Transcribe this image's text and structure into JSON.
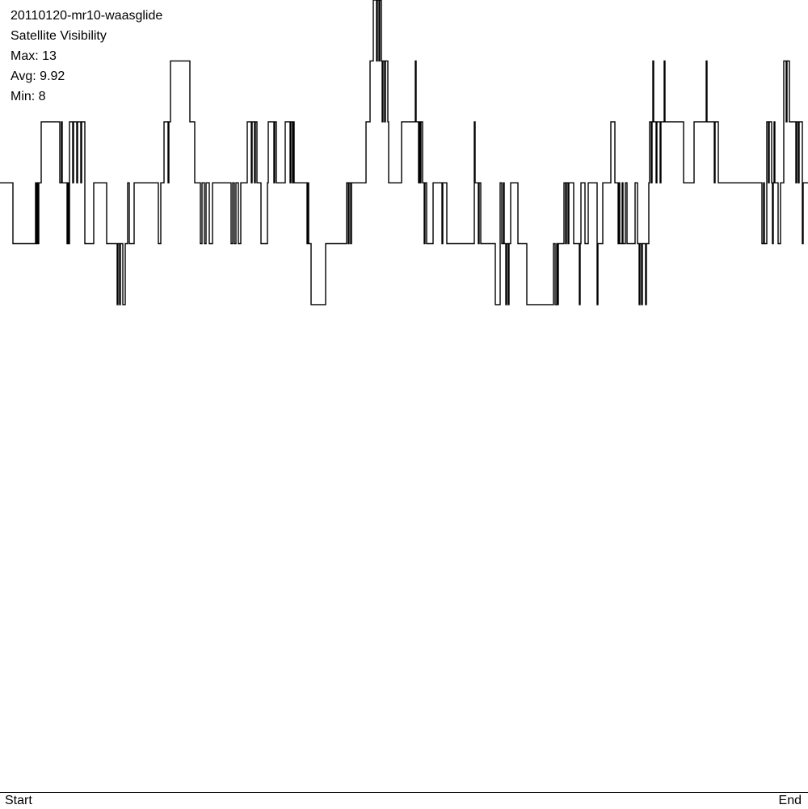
{
  "header": {
    "dataset": "20110120-mr10-waasglide",
    "title": "Satellite Visibility",
    "max_label": "Max: 13",
    "avg_label": "Avg: 9.92",
    "min_label": "Min: 8"
  },
  "chart_data": {
    "type": "line",
    "title": "Satellite Visibility",
    "step": true,
    "xlabel": "",
    "ylabel": "",
    "x_tick_labels": [
      "Start",
      "End"
    ],
    "x_unit": "percent of duration",
    "xlim": [
      0,
      100
    ],
    "ylim": [
      0,
      13
    ],
    "grid": false,
    "line_color": "#000000",
    "stats": {
      "max": 13,
      "avg": 9.92,
      "min": 8
    },
    "points": [
      [
        0,
        10
      ],
      [
        1.6,
        9
      ],
      [
        4.4,
        10
      ],
      [
        4.5,
        9
      ],
      [
        4.6,
        10
      ],
      [
        4.7,
        9
      ],
      [
        4.8,
        10
      ],
      [
        5.1,
        11
      ],
      [
        7.4,
        10
      ],
      [
        7.6,
        11
      ],
      [
        7.7,
        10
      ],
      [
        8.3,
        9
      ],
      [
        8.4,
        10
      ],
      [
        8.5,
        9
      ],
      [
        8.6,
        11
      ],
      [
        9.0,
        10
      ],
      [
        9.1,
        11
      ],
      [
        9.5,
        10
      ],
      [
        9.6,
        11
      ],
      [
        10.0,
        10
      ],
      [
        10.1,
        11
      ],
      [
        10.5,
        9
      ],
      [
        11.6,
        10
      ],
      [
        13.2,
        9
      ],
      [
        14.5,
        8
      ],
      [
        14.6,
        9
      ],
      [
        14.8,
        8
      ],
      [
        14.9,
        9
      ],
      [
        15.2,
        8
      ],
      [
        15.5,
        9
      ],
      [
        15.8,
        10
      ],
      [
        16.0,
        9
      ],
      [
        16.6,
        10
      ],
      [
        19.6,
        9
      ],
      [
        19.9,
        10
      ],
      [
        20.3,
        11
      ],
      [
        20.8,
        10
      ],
      [
        20.9,
        11
      ],
      [
        21.1,
        12
      ],
      [
        23.5,
        11
      ],
      [
        24.1,
        10
      ],
      [
        24.8,
        9
      ],
      [
        25.0,
        10
      ],
      [
        25.3,
        9
      ],
      [
        25.5,
        10
      ],
      [
        25.9,
        9
      ],
      [
        26.3,
        10
      ],
      [
        28.6,
        9
      ],
      [
        28.8,
        10
      ],
      [
        29.0,
        9
      ],
      [
        29.2,
        10
      ],
      [
        29.5,
        9
      ],
      [
        29.8,
        10
      ],
      [
        30.6,
        11
      ],
      [
        31.1,
        10
      ],
      [
        31.2,
        11
      ],
      [
        31.5,
        10
      ],
      [
        31.6,
        11
      ],
      [
        31.8,
        10
      ],
      [
        32.3,
        9
      ],
      [
        33.1,
        10
      ],
      [
        33.2,
        11
      ],
      [
        33.9,
        10
      ],
      [
        34.0,
        11
      ],
      [
        34.2,
        10
      ],
      [
        35.3,
        11
      ],
      [
        35.9,
        10
      ],
      [
        36.0,
        11
      ],
      [
        36.2,
        10
      ],
      [
        36.3,
        11
      ],
      [
        36.4,
        10
      ],
      [
        38.0,
        9
      ],
      [
        38.1,
        10
      ],
      [
        38.2,
        9
      ],
      [
        38.5,
        8
      ],
      [
        40.3,
        9
      ],
      [
        42.9,
        10
      ],
      [
        43.1,
        9
      ],
      [
        43.2,
        10
      ],
      [
        43.4,
        9
      ],
      [
        43.5,
        10
      ],
      [
        45.3,
        11
      ],
      [
        45.8,
        12
      ],
      [
        46.2,
        13
      ],
      [
        46.6,
        12
      ],
      [
        46.7,
        13
      ],
      [
        46.9,
        12
      ],
      [
        47.0,
        13
      ],
      [
        47.2,
        12
      ],
      [
        47.3,
        11
      ],
      [
        47.4,
        12
      ],
      [
        47.6,
        11
      ],
      [
        47.7,
        12
      ],
      [
        48.0,
        11
      ],
      [
        48.1,
        10
      ],
      [
        49.7,
        11
      ],
      [
        51.4,
        12
      ],
      [
        51.5,
        11
      ],
      [
        51.8,
        10
      ],
      [
        51.9,
        11
      ],
      [
        52.0,
        10
      ],
      [
        52.1,
        11
      ],
      [
        52.3,
        10
      ],
      [
        52.5,
        9
      ],
      [
        52.6,
        10
      ],
      [
        52.8,
        9
      ],
      [
        53.6,
        10
      ],
      [
        54.7,
        9
      ],
      [
        54.8,
        10
      ],
      [
        55.3,
        9
      ],
      [
        58.7,
        11
      ],
      [
        58.8,
        10
      ],
      [
        59.2,
        9
      ],
      [
        59.3,
        10
      ],
      [
        59.5,
        9
      ],
      [
        61.3,
        8
      ],
      [
        61.9,
        10
      ],
      [
        62.1,
        9
      ],
      [
        62.3,
        10
      ],
      [
        62.4,
        9
      ],
      [
        62.6,
        8
      ],
      [
        62.7,
        9
      ],
      [
        62.9,
        8
      ],
      [
        63.0,
        9
      ],
      [
        63.2,
        10
      ],
      [
        64.1,
        9
      ],
      [
        65.2,
        8
      ],
      [
        68.5,
        9
      ],
      [
        68.7,
        8
      ],
      [
        68.9,
        9
      ],
      [
        69.0,
        8
      ],
      [
        69.1,
        9
      ],
      [
        69.8,
        10
      ],
      [
        70.0,
        9
      ],
      [
        70.1,
        10
      ],
      [
        70.3,
        9
      ],
      [
        70.4,
        10
      ],
      [
        70.6,
        10
      ],
      [
        71.0,
        9
      ],
      [
        71.7,
        8
      ],
      [
        71.8,
        9
      ],
      [
        71.9,
        10
      ],
      [
        72.4,
        9
      ],
      [
        72.8,
        10
      ],
      [
        73.9,
        8
      ],
      [
        74.0,
        9
      ],
      [
        74.6,
        10
      ],
      [
        75.6,
        11
      ],
      [
        76.1,
        10
      ],
      [
        76.5,
        9
      ],
      [
        76.6,
        10
      ],
      [
        76.7,
        9
      ],
      [
        77.0,
        10
      ],
      [
        77.1,
        9
      ],
      [
        77.4,
        10
      ],
      [
        77.6,
        9
      ],
      [
        78.6,
        10
      ],
      [
        78.9,
        9
      ],
      [
        79.1,
        8
      ],
      [
        79.2,
        9
      ],
      [
        79.4,
        8
      ],
      [
        79.5,
        9
      ],
      [
        79.9,
        8
      ],
      [
        80.0,
        9
      ],
      [
        80.3,
        10
      ],
      [
        80.4,
        11
      ],
      [
        80.6,
        10
      ],
      [
        80.7,
        11
      ],
      [
        80.8,
        12
      ],
      [
        80.9,
        11
      ],
      [
        81.2,
        10
      ],
      [
        81.3,
        11
      ],
      [
        81.7,
        10
      ],
      [
        81.8,
        11
      ],
      [
        82.2,
        12
      ],
      [
        82.3,
        11
      ],
      [
        84.6,
        10
      ],
      [
        85.9,
        11
      ],
      [
        87.4,
        12
      ],
      [
        87.5,
        11
      ],
      [
        88.4,
        10
      ],
      [
        88.5,
        11
      ],
      [
        88.9,
        10
      ],
      [
        94.3,
        9
      ],
      [
        94.5,
        10
      ],
      [
        94.6,
        9
      ],
      [
        94.9,
        11
      ],
      [
        95.1,
        10
      ],
      [
        95.2,
        11
      ],
      [
        95.5,
        10
      ],
      [
        95.6,
        9
      ],
      [
        95.7,
        10
      ],
      [
        95.8,
        11
      ],
      [
        95.9,
        10
      ],
      [
        96.3,
        9
      ],
      [
        96.6,
        10
      ],
      [
        97.0,
        12
      ],
      [
        97.3,
        11
      ],
      [
        97.4,
        12
      ],
      [
        97.7,
        11
      ],
      [
        98.5,
        10
      ],
      [
        98.6,
        11
      ],
      [
        98.8,
        10
      ],
      [
        98.9,
        11
      ],
      [
        99.3,
        9
      ],
      [
        99.4,
        10
      ],
      [
        100,
        10
      ]
    ]
  }
}
